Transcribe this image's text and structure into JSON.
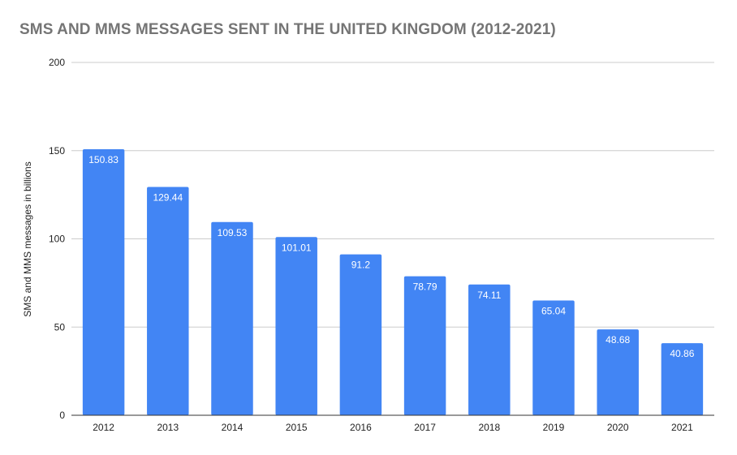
{
  "chart_data": {
    "type": "bar",
    "title": "SMS AND MMS MESSAGES SENT IN THE UNITED KINGDOM (2012-2021)",
    "xlabel": "",
    "ylabel": "SMS and MMS messages in billions",
    "categories": [
      "2012",
      "2013",
      "2014",
      "2015",
      "2016",
      "2017",
      "2018",
      "2019",
      "2020",
      "2021"
    ],
    "values": [
      150.83,
      129.44,
      109.53,
      101.01,
      91.2,
      78.79,
      74.11,
      65.04,
      48.68,
      40.86
    ],
    "data_labels": [
      "150.83",
      "129.44",
      "109.53",
      "101.01",
      "91.2",
      "78.79",
      "74.11",
      "65.04",
      "48.68",
      "40.86"
    ],
    "ylim": [
      0,
      200
    ],
    "yticks": [
      0,
      50,
      100,
      150,
      200
    ],
    "grid": true,
    "legend": "none",
    "bar_color": "#4285f4",
    "title_color": "#757575",
    "grid_color": "#cccccc"
  }
}
